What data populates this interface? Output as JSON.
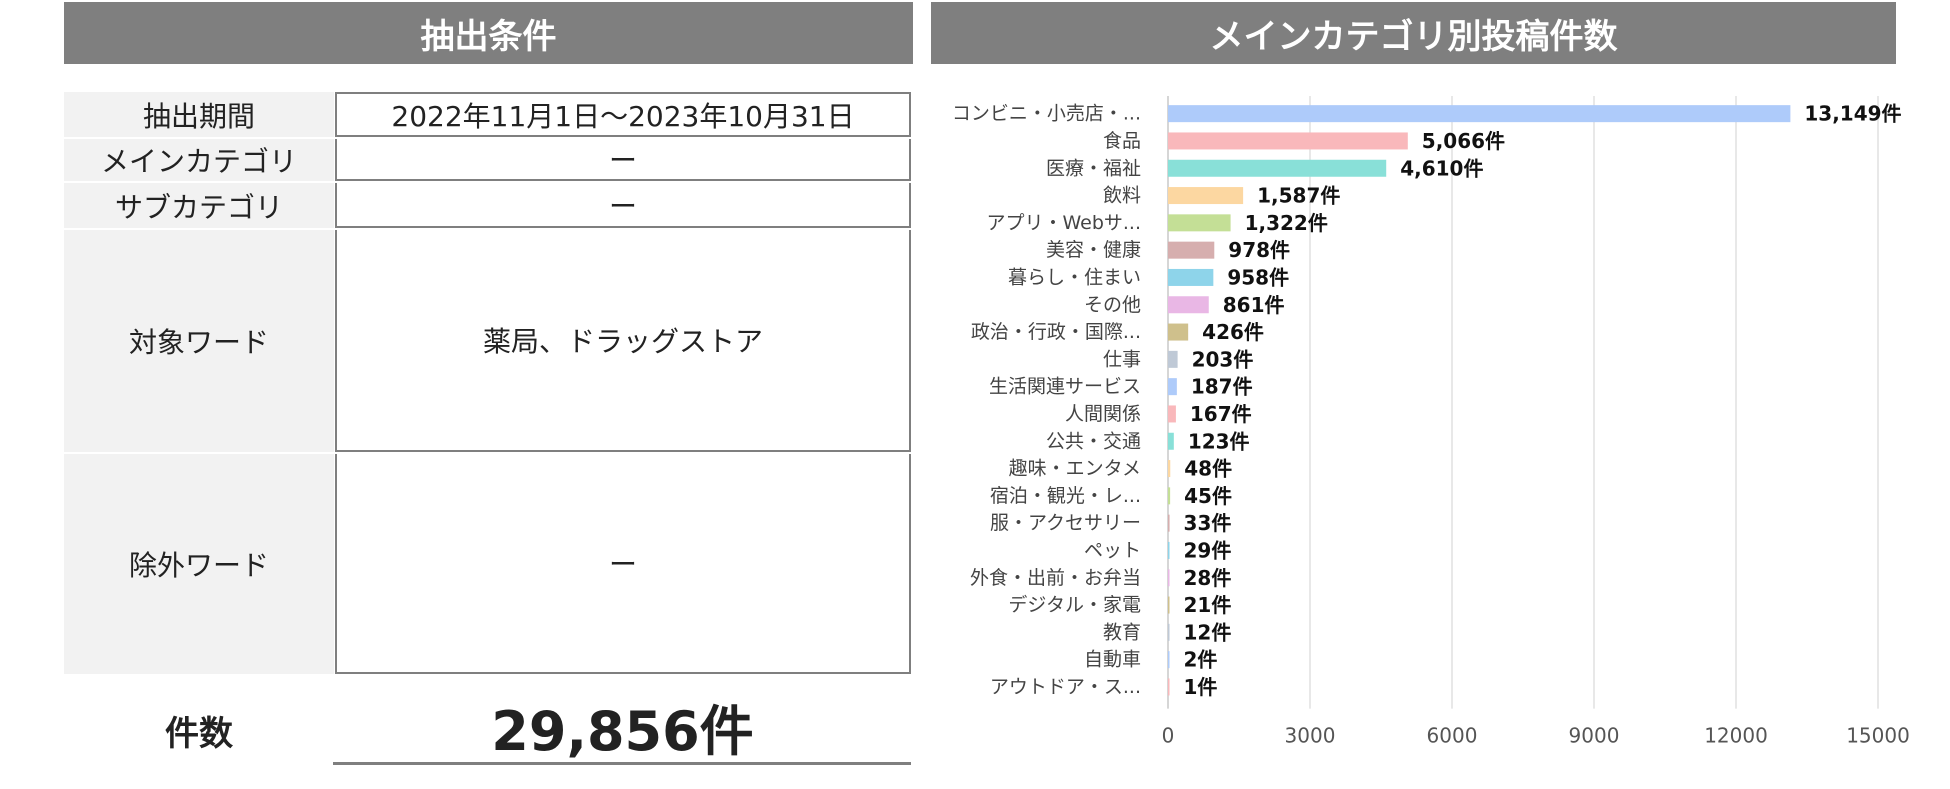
{
  "left_panel": {
    "title": "抽出条件",
    "rows": [
      {
        "label": "抽出期間",
        "value": "2022年11月1日～2023年10月31日"
      },
      {
        "label": "メインカテゴリ",
        "value": "ー"
      },
      {
        "label": "サブカテゴリ",
        "value": "ー"
      },
      {
        "label": "対象ワード",
        "value": "薬局、ドラッグストア"
      },
      {
        "label": "除外ワード",
        "value": "ー"
      }
    ],
    "count_label": "件数",
    "count_value": "29,856件"
  },
  "right_panel": {
    "title": "メインカテゴリ別投稿件数"
  },
  "chart_data": {
    "type": "bar",
    "orientation": "horizontal",
    "title": "メインカテゴリ別投稿件数",
    "categories": [
      "コンビニ・小売店・...",
      "食品",
      "医療・福祉",
      "飲料",
      "アプリ・Webサ...",
      "美容・健康",
      "暮らし・住まい",
      "その他",
      "政治・行政・国際...",
      "仕事",
      "生活関連サービス",
      "人間関係",
      "公共・交通",
      "趣味・エンタメ",
      "宿泊・観光・レ...",
      "服・アクセサリー",
      "ペット",
      "外食・出前・お弁当",
      "デジタル・家電",
      "教育",
      "自動車",
      "アウトドア・ス..."
    ],
    "values": [
      13149,
      5066,
      4610,
      1587,
      1322,
      978,
      958,
      861,
      426,
      203,
      187,
      167,
      123,
      48,
      45,
      33,
      29,
      28,
      21,
      12,
      2,
      1
    ],
    "data_labels": [
      "13,149件",
      "5,066件",
      "4,610件",
      "1,587件",
      "1,322件",
      "978件",
      "958件",
      "861件",
      "426件",
      "203件",
      "187件",
      "167件",
      "123件",
      "48件",
      "45件",
      "33件",
      "29件",
      "28件",
      "21件",
      "12件",
      "2件",
      "1件"
    ],
    "colors": [
      "#aecbfa",
      "#f9b8bb",
      "#89e0d8",
      "#fcd7a1",
      "#c4df96",
      "#d6aeae",
      "#8ed4ea",
      "#e9b7e5",
      "#cfc08c",
      "#bfc9d6",
      "#aecbfa",
      "#f9b8bb",
      "#89e0d8",
      "#fcd7a1",
      "#c4df96",
      "#d6aeae",
      "#8ed4ea",
      "#e9b7e5",
      "#cfc08c",
      "#bfc9d6",
      "#aecbfa",
      "#f9b8bb"
    ],
    "xlim": [
      0,
      15000
    ],
    "xticks": [
      0,
      3000,
      6000,
      9000,
      12000,
      15000
    ],
    "grid": true
  }
}
